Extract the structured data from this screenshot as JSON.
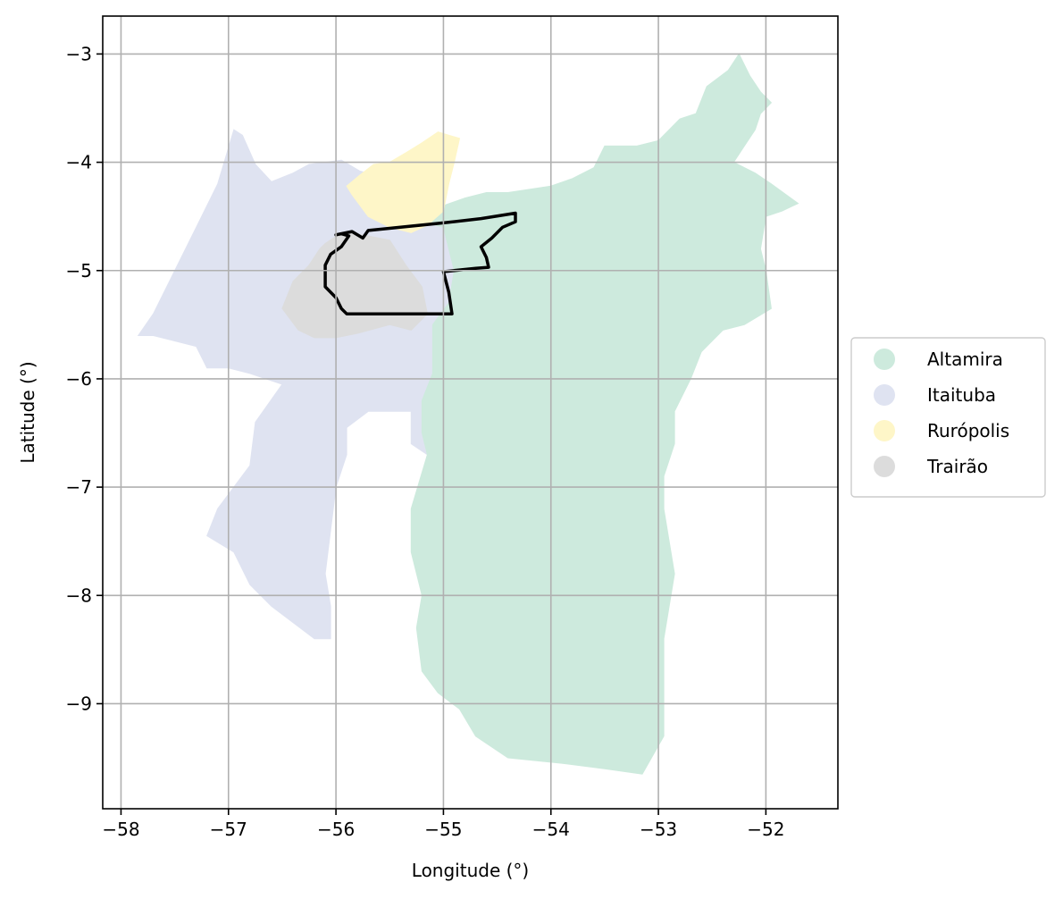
{
  "chart_data": {
    "type": "map",
    "xlabel": "Longitude (°)",
    "ylabel": "Latitude (°)",
    "xlim": [
      -58.17,
      -51.33
    ],
    "ylim": [
      -9.97,
      -2.65
    ],
    "x_ticks": [
      -58,
      -57,
      -56,
      -55,
      -54,
      -53,
      -52
    ],
    "y_ticks": [
      -3,
      -4,
      -5,
      -6,
      -7,
      -8,
      -9
    ],
    "x_tick_labels": [
      "−58",
      "−57",
      "−56",
      "−55",
      "−54",
      "−53",
      "−52"
    ],
    "y_tick_labels": [
      "−3",
      "−4",
      "−5",
      "−6",
      "−7",
      "−8",
      "−9"
    ],
    "grid": true,
    "legend_position": "right",
    "legend": [
      {
        "name": "Altamira",
        "color": "#cdeadd"
      },
      {
        "name": "Itaituba",
        "color": "#dfe3f1"
      },
      {
        "name": "Rurópolis",
        "color": "#fef6c8"
      },
      {
        "name": "Trairão",
        "color": "#dcdcdc"
      }
    ],
    "regions": [
      {
        "name": "Itaituba",
        "color": "#dfe3f1",
        "polygon": [
          [
            -57.84,
            -5.6
          ],
          [
            -57.7,
            -5.4
          ],
          [
            -57.5,
            -5.0
          ],
          [
            -57.3,
            -4.6
          ],
          [
            -57.1,
            -4.2
          ],
          [
            -56.95,
            -3.7
          ],
          [
            -56.87,
            -3.75
          ],
          [
            -56.75,
            -4.02
          ],
          [
            -56.6,
            -4.18
          ],
          [
            -56.4,
            -4.1
          ],
          [
            -56.25,
            -4.02
          ],
          [
            -55.95,
            -3.98
          ],
          [
            -55.78,
            -4.08
          ],
          [
            -55.63,
            -4.12
          ],
          [
            -55.5,
            -4.1
          ],
          [
            -55.25,
            -4.32
          ],
          [
            -55.2,
            -4.55
          ],
          [
            -55.0,
            -4.6
          ],
          [
            -54.9,
            -5.0
          ],
          [
            -54.95,
            -5.3
          ],
          [
            -55.1,
            -5.5
          ],
          [
            -55.1,
            -5.95
          ],
          [
            -55.2,
            -6.2
          ],
          [
            -55.2,
            -6.5
          ],
          [
            -55.15,
            -6.7
          ],
          [
            -55.3,
            -6.6
          ],
          [
            -55.3,
            -6.3
          ],
          [
            -55.7,
            -6.3
          ],
          [
            -55.9,
            -6.45
          ],
          [
            -55.9,
            -6.7
          ],
          [
            -56.0,
            -7.0
          ],
          [
            -56.05,
            -7.4
          ],
          [
            -56.1,
            -7.8
          ],
          [
            -56.05,
            -8.1
          ],
          [
            -56.05,
            -8.4
          ],
          [
            -56.2,
            -8.4
          ],
          [
            -56.4,
            -8.25
          ],
          [
            -56.6,
            -8.1
          ],
          [
            -56.8,
            -7.9
          ],
          [
            -56.95,
            -7.6
          ],
          [
            -57.2,
            -7.45
          ],
          [
            -57.1,
            -7.2
          ],
          [
            -56.95,
            -7.0
          ],
          [
            -56.8,
            -6.8
          ],
          [
            -56.75,
            -6.4
          ],
          [
            -56.5,
            -6.05
          ],
          [
            -56.8,
            -5.95
          ],
          [
            -57.0,
            -5.9
          ],
          [
            -57.2,
            -5.9
          ],
          [
            -57.3,
            -5.7
          ],
          [
            -57.5,
            -5.65
          ],
          [
            -57.7,
            -5.6
          ]
        ]
      },
      {
        "name": "Altamira",
        "color": "#cdeadd",
        "polygon": [
          [
            -55.2,
            -4.55
          ],
          [
            -55.0,
            -4.4
          ],
          [
            -54.8,
            -4.33
          ],
          [
            -54.6,
            -4.28
          ],
          [
            -54.4,
            -4.28
          ],
          [
            -54.2,
            -4.25
          ],
          [
            -54.0,
            -4.22
          ],
          [
            -53.8,
            -4.15
          ],
          [
            -53.6,
            -4.05
          ],
          [
            -53.5,
            -3.85
          ],
          [
            -53.4,
            -3.85
          ],
          [
            -53.2,
            -3.85
          ],
          [
            -53.0,
            -3.8
          ],
          [
            -52.8,
            -3.6
          ],
          [
            -52.65,
            -3.55
          ],
          [
            -52.55,
            -3.3
          ],
          [
            -52.35,
            -3.15
          ],
          [
            -52.25,
            -3.0
          ],
          [
            -52.15,
            -3.2
          ],
          [
            -52.05,
            -3.35
          ],
          [
            -51.95,
            -3.45
          ],
          [
            -52.05,
            -3.55
          ],
          [
            -52.1,
            -3.7
          ],
          [
            -52.2,
            -3.85
          ],
          [
            -52.3,
            -4.0
          ],
          [
            -52.1,
            -4.1
          ],
          [
            -51.95,
            -4.2
          ],
          [
            -51.7,
            -4.38
          ],
          [
            -51.85,
            -4.45
          ],
          [
            -52.0,
            -4.5
          ],
          [
            -52.05,
            -4.8
          ],
          [
            -52.0,
            -5.0
          ],
          [
            -51.95,
            -5.35
          ],
          [
            -52.2,
            -5.5
          ],
          [
            -52.4,
            -5.55
          ],
          [
            -52.6,
            -5.75
          ],
          [
            -52.7,
            -6.0
          ],
          [
            -52.85,
            -6.3
          ],
          [
            -52.85,
            -6.6
          ],
          [
            -52.95,
            -6.9
          ],
          [
            -52.95,
            -7.2
          ],
          [
            -52.9,
            -7.5
          ],
          [
            -52.85,
            -7.8
          ],
          [
            -52.9,
            -8.1
          ],
          [
            -52.95,
            -8.4
          ],
          [
            -52.95,
            -8.7
          ],
          [
            -52.95,
            -9.0
          ],
          [
            -52.95,
            -9.3
          ],
          [
            -53.15,
            -9.65
          ],
          [
            -53.5,
            -9.6
          ],
          [
            -53.9,
            -9.55
          ],
          [
            -54.4,
            -9.5
          ],
          [
            -54.7,
            -9.3
          ],
          [
            -54.85,
            -9.05
          ],
          [
            -55.05,
            -8.9
          ],
          [
            -55.2,
            -8.7
          ],
          [
            -55.25,
            -8.3
          ],
          [
            -55.2,
            -8.0
          ],
          [
            -55.3,
            -7.6
          ],
          [
            -55.3,
            -7.2
          ],
          [
            -55.15,
            -6.7
          ],
          [
            -55.2,
            -6.5
          ],
          [
            -55.2,
            -6.2
          ],
          [
            -55.1,
            -5.95
          ],
          [
            -55.1,
            -5.5
          ],
          [
            -54.95,
            -5.3
          ],
          [
            -54.9,
            -5.0
          ],
          [
            -55.0,
            -4.6
          ]
        ]
      },
      {
        "name": "Rurópolis",
        "color": "#fef6c8",
        "polygon": [
          [
            -55.9,
            -4.22
          ],
          [
            -55.78,
            -4.12
          ],
          [
            -55.65,
            -4.02
          ],
          [
            -55.5,
            -4.0
          ],
          [
            -55.33,
            -3.9
          ],
          [
            -55.2,
            -3.82
          ],
          [
            -55.05,
            -3.72
          ],
          [
            -54.85,
            -3.78
          ],
          [
            -54.9,
            -4.0
          ],
          [
            -54.95,
            -4.2
          ],
          [
            -55.0,
            -4.45
          ],
          [
            -55.15,
            -4.58
          ],
          [
            -55.3,
            -4.65
          ],
          [
            -55.5,
            -4.6
          ],
          [
            -55.7,
            -4.5
          ],
          [
            -55.85,
            -4.3
          ]
        ]
      },
      {
        "name": "Trairão",
        "color": "#dcdcdc",
        "polygon": [
          [
            -56.1,
            -4.75
          ],
          [
            -55.95,
            -4.65
          ],
          [
            -55.7,
            -4.68
          ],
          [
            -55.5,
            -4.72
          ],
          [
            -55.35,
            -4.95
          ],
          [
            -55.2,
            -5.15
          ],
          [
            -55.15,
            -5.4
          ],
          [
            -55.3,
            -5.55
          ],
          [
            -55.5,
            -5.5
          ],
          [
            -55.8,
            -5.58
          ],
          [
            -56.0,
            -5.62
          ],
          [
            -56.2,
            -5.62
          ],
          [
            -56.35,
            -5.55
          ],
          [
            -56.5,
            -5.35
          ],
          [
            -56.4,
            -5.1
          ],
          [
            -56.25,
            -4.95
          ],
          [
            -56.15,
            -4.8
          ]
        ]
      }
    ],
    "outline": {
      "color": "#000000",
      "polygon": [
        [
          -56.0,
          -4.67
        ],
        [
          -55.85,
          -4.64
        ],
        [
          -55.75,
          -4.7
        ],
        [
          -55.7,
          -4.63
        ],
        [
          -55.4,
          -4.6
        ],
        [
          -55.0,
          -4.56
        ],
        [
          -54.65,
          -4.52
        ],
        [
          -54.33,
          -4.47
        ],
        [
          -54.33,
          -4.55
        ],
        [
          -54.45,
          -4.6
        ],
        [
          -54.55,
          -4.7
        ],
        [
          -54.65,
          -4.78
        ],
        [
          -54.6,
          -4.88
        ],
        [
          -54.58,
          -4.97
        ],
        [
          -54.7,
          -4.98
        ],
        [
          -55.0,
          -5.01
        ],
        [
          -54.95,
          -5.2
        ],
        [
          -54.92,
          -5.4
        ],
        [
          -55.3,
          -5.4
        ],
        [
          -55.6,
          -5.4
        ],
        [
          -55.9,
          -5.4
        ],
        [
          -55.95,
          -5.35
        ],
        [
          -56.0,
          -5.25
        ],
        [
          -56.1,
          -5.15
        ],
        [
          -56.1,
          -5.05
        ],
        [
          -56.1,
          -4.95
        ],
        [
          -56.05,
          -4.85
        ],
        [
          -55.95,
          -4.78
        ],
        [
          -55.88,
          -4.68
        ],
        [
          -55.95,
          -4.66
        ]
      ]
    }
  }
}
